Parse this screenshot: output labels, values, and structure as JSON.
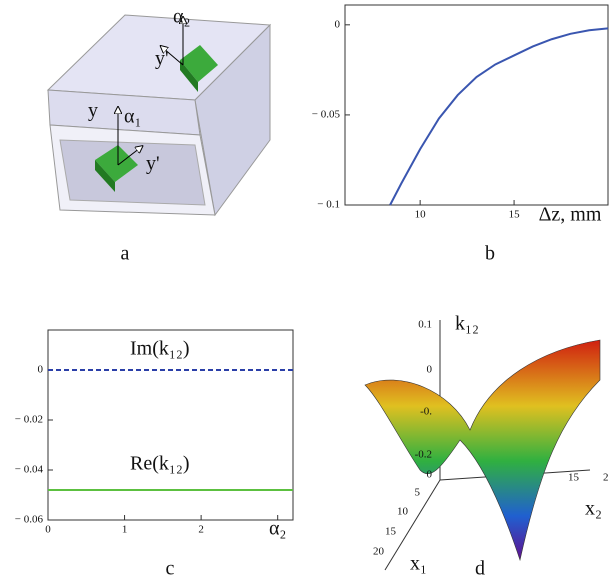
{
  "chart_data": [
    {
      "type": "line",
      "panel": "b",
      "x_label": "Δz, mm",
      "x": [
        8.4,
        9,
        10,
        11,
        12,
        13,
        14,
        15,
        16,
        17,
        18,
        19,
        20
      ],
      "series": [
        {
          "color": "#3a56b0",
          "values": [
            -0.1,
            -0.088,
            -0.069,
            -0.052,
            -0.039,
            -0.029,
            -0.022,
            -0.017,
            -0.012,
            -0.008,
            -0.005,
            -0.003,
            -0.002
          ]
        }
      ],
      "xlim": [
        6,
        20
      ],
      "ylim": [
        -0.1,
        0.011
      ],
      "xticks": [
        10,
        15
      ],
      "yticks": [
        0,
        {
          "value": -0.05,
          "label": "− 0.05"
        },
        {
          "value": -0.1,
          "label": "− 0.1"
        }
      ]
    },
    {
      "type": "line",
      "panel": "c",
      "x": [
        0,
        3.2
      ],
      "series": [
        {
          "name": "Im(k₁₂)",
          "color": "#2b3fa8",
          "dashed": true,
          "values": [
            0,
            0
          ]
        },
        {
          "name": "Re(k₁₂)",
          "color": "#5cc040",
          "dashed": false,
          "values": [
            -0.048,
            -0.048
          ]
        }
      ],
      "xlim": [
        0,
        3.2
      ],
      "ylim": [
        -0.06,
        0.016
      ],
      "xticks": [
        0,
        1,
        2,
        {
          "value": 3,
          "label": "α₂"
        }
      ],
      "yticks": [
        0,
        {
          "value": -0.02,
          "label": "− 0.02"
        },
        {
          "value": -0.04,
          "label": "− 0.04"
        },
        {
          "value": -0.06,
          "label": "− 0.06"
        }
      ]
    }
  ],
  "diagram": {
    "labels": [
      "α₂",
      "y'",
      "y",
      "α₁",
      "y'"
    ]
  },
  "surface": {
    "z_label": "k₁₂",
    "x1_label": "x₁",
    "x2_label": "x₂",
    "z_ticks": [
      "0.1",
      "0",
      "-0.",
      "-0.2"
    ],
    "x1_ticks": [
      "0",
      "5",
      "10",
      "15",
      "20"
    ],
    "x2_ticks": [
      "15",
      "2"
    ]
  },
  "panel_letters": [
    "a",
    "b",
    "c",
    "d"
  ]
}
